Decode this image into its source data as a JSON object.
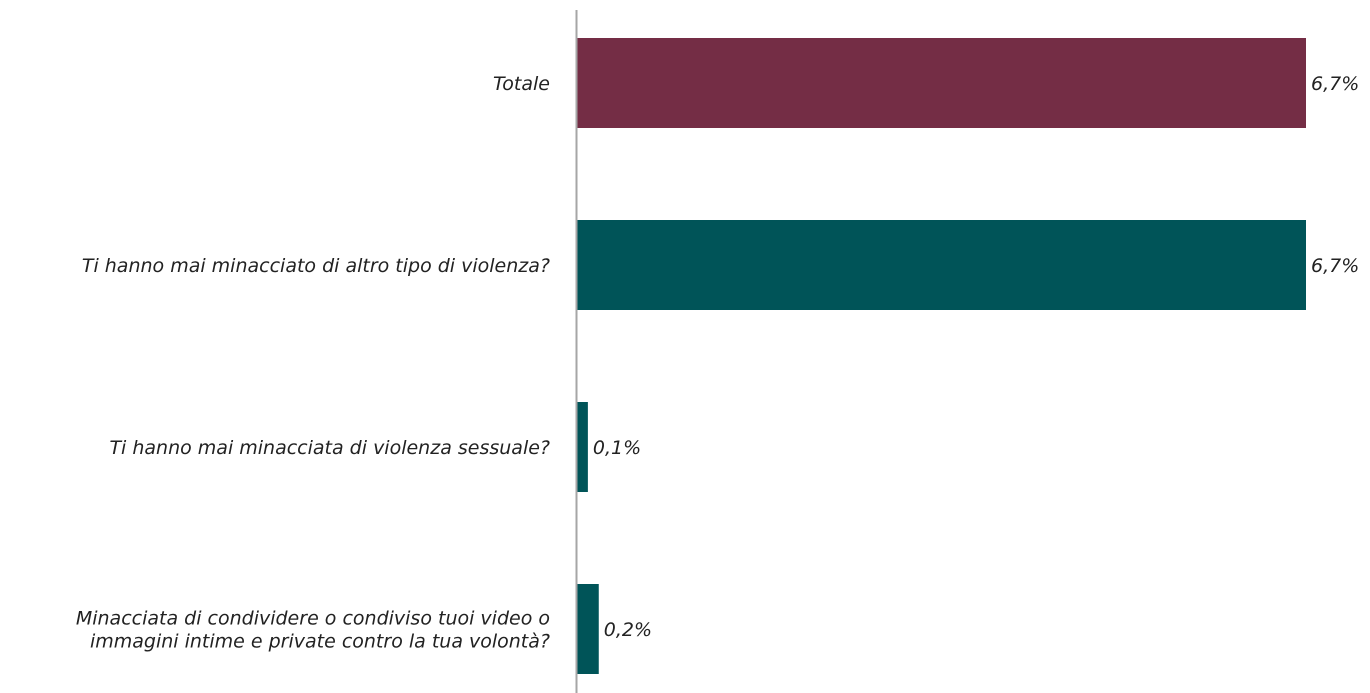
{
  "chart_data": {
    "type": "bar",
    "orientation": "horizontal",
    "categories": [
      [
        "Totale"
      ],
      [
        "Ti hanno mai minacciato di altro tipo di violenza?"
      ],
      [
        "Ti hanno mai minacciata di violenza sessuale?"
      ],
      [
        "Minacciata di condividere o condiviso tuoi video o",
        "immagini intime e private contro la tua volontà?"
      ]
    ],
    "values": [
      6.7,
      6.7,
      0.1,
      0.2
    ],
    "value_labels": [
      "6,7%",
      "6,7%",
      "0,1%",
      "0,2%"
    ],
    "xlim": [
      0,
      6.7
    ],
    "colors": [
      "#742d45",
      "#005458",
      "#005458",
      "#005458"
    ],
    "axis_color": "#a6a6a6",
    "grid": false,
    "legend": "none"
  }
}
